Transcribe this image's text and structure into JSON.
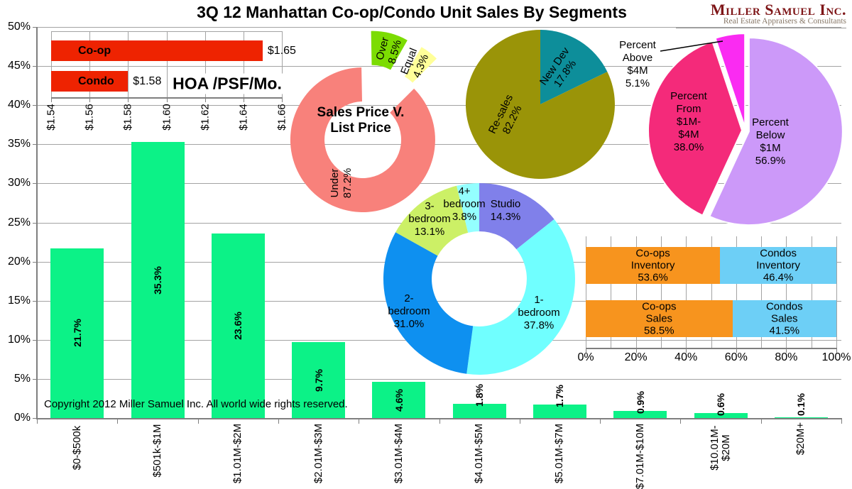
{
  "title": "3Q 12 Manhattan Co-op/Condo Unit Sales By Segments",
  "logo": {
    "name": "Miller Samuel Inc.",
    "tagline": "Real Estate Appraisers & Consultants",
    "name_color": "#7E1517",
    "tagline_color": "#877767"
  },
  "copyright": "Copyright 2012 Miller Samuel Inc. All world wide rights reserved.",
  "colors": {
    "grid": "#A3A3A3",
    "axis": "#7F7F7F"
  },
  "chart_data": [
    {
      "id": "unit-sales-by-price-segment",
      "type": "bar",
      "title": "3Q 12 Manhattan Co-op/Condo Unit Sales By Segments",
      "categories": [
        "$0-$500k",
        "$501k-$1M",
        "$1.01M-$2M",
        "$2.01M-$3M",
        "$3.01M-$4M",
        "$4.01M-$5M",
        "$5.01M-$7M",
        "$7.01M-$10M",
        "$10.01M-\n$20M",
        "$20M+"
      ],
      "values": [
        21.7,
        35.3,
        23.6,
        9.7,
        4.6,
        1.8,
        1.7,
        0.9,
        0.6,
        0.1
      ],
      "labels": [
        "21.7%",
        "35.3%",
        "23.6%",
        "9.7%",
        "4.6%",
        "1.8%",
        "1.7%",
        "0.9%",
        "0.6%",
        "0.1%"
      ],
      "ylim": [
        0,
        50
      ],
      "ytick_step": 5,
      "yticks": [
        "0%",
        "5%",
        "10%",
        "15%",
        "20%",
        "25%",
        "30%",
        "35%",
        "40%",
        "45%",
        "50%"
      ],
      "grid": true,
      "bar_color": "#0CF287"
    },
    {
      "id": "hoa-psf-mo",
      "type": "bar",
      "orientation": "horizontal",
      "title": "HOA /PSF/Mo.",
      "categories": [
        "Co-op",
        "Condo"
      ],
      "values": [
        1.65,
        1.58
      ],
      "value_labels": [
        "$1.65",
        "$1.58"
      ],
      "xlim": [
        1.54,
        1.66
      ],
      "xticks": [
        "$1.54",
        "$1.56",
        "$1.58",
        "$1.60",
        "$1.62",
        "$1.64",
        "$1.66"
      ],
      "bar_color": "#EE2301"
    },
    {
      "id": "sales-price-vs-list-price",
      "type": "pie",
      "subtype": "donut",
      "title_lines": [
        "Sales Price V.",
        "List Price"
      ],
      "start_angle": 45,
      "slices": [
        {
          "label": "Under",
          "value": 87.2,
          "label_lines": [
            "Under",
            "87.2%"
          ],
          "color": "#F8817B"
        },
        {
          "label": "Over",
          "value": 8.5,
          "label_lines": [
            "Over",
            "8.5%"
          ],
          "color": "#7CDC02",
          "exploded": true
        },
        {
          "label": "Equal",
          "value": 4.3,
          "label_lines": [
            "Equal",
            "4.3%"
          ],
          "color": "#FFFF99",
          "exploded": true
        }
      ]
    },
    {
      "id": "resales-vs-new-dev",
      "type": "pie",
      "slices": [
        {
          "label": "New Dev",
          "value": 17.8,
          "label_lines": [
            "New Dev",
            "17.8%"
          ],
          "color": "#0D8E9A"
        },
        {
          "label": "Re-sales",
          "value": 82.2,
          "label_lines": [
            "Re-sales",
            "82.2%"
          ],
          "color": "#9A9408"
        }
      ]
    },
    {
      "id": "sales-by-price-tier",
      "type": "pie",
      "slices": [
        {
          "label": "Percent Below $1M",
          "value": 56.9,
          "label_lines": [
            "Percent",
            "Below",
            "$1M",
            "56.9%"
          ],
          "color": "#CC99F9"
        },
        {
          "label": "Percent From $1M-$4M",
          "value": 38.0,
          "label_lines": [
            "Percent",
            "From",
            "$1M-",
            "$4M",
            "38.0%"
          ],
          "color": "#F42A7A"
        },
        {
          "label": "Percent Above $4M",
          "value": 5.1,
          "label_lines": [
            "Percent",
            "Above",
            "$4M",
            "5.1%"
          ],
          "color": "#FA2BF2",
          "callout": true
        }
      ]
    },
    {
      "id": "sales-by-bedrooms",
      "type": "pie",
      "subtype": "donut",
      "slices": [
        {
          "label": "Studio",
          "value": 14.3,
          "label_lines": [
            "Studio",
            "14.3%"
          ],
          "color": "#8080EA"
        },
        {
          "label": "1-bedroom",
          "value": 37.8,
          "label_lines": [
            "1-",
            "bedroom",
            "37.8%"
          ],
          "color": "#70FFFF"
        },
        {
          "label": "2-bedroom",
          "value": 31.0,
          "label_lines": [
            "2-",
            "bedroom",
            "31.0%"
          ],
          "color": "#0E90F0"
        },
        {
          "label": "3-bedroom",
          "value": 13.1,
          "label_lines": [
            "3-",
            "bedroom",
            "13.1%"
          ],
          "color": "#CCF066"
        },
        {
          "label": "4+ bedroom",
          "value": 3.8,
          "label_lines": [
            "4+",
            "bedroom",
            "3.8%"
          ],
          "color": "#94FFFF"
        }
      ]
    },
    {
      "id": "coop-condo-share",
      "type": "bar",
      "subtype": "stacked-horizontal",
      "series": [
        {
          "name": "Co-ops",
          "color": "#F7941E"
        },
        {
          "name": "Condos",
          "color": "#6DCFF6"
        }
      ],
      "rows": [
        {
          "category": "Inventory",
          "values": [
            53.6,
            46.4
          ],
          "labels": [
            [
              "Co-ops",
              "Inventory",
              "53.6%"
            ],
            [
              "Condos",
              "Inventory",
              "46.4%"
            ]
          ]
        },
        {
          "category": "Sales",
          "values": [
            58.5,
            41.5
          ],
          "labels": [
            [
              "Co-ops",
              "Sales",
              "58.5%"
            ],
            [
              "Condos",
              "Sales",
              "41.5%"
            ]
          ]
        }
      ],
      "xlim": [
        0,
        100
      ],
      "xticks": [
        "0%",
        "20%",
        "40%",
        "60%",
        "80%",
        "100%"
      ]
    }
  ]
}
